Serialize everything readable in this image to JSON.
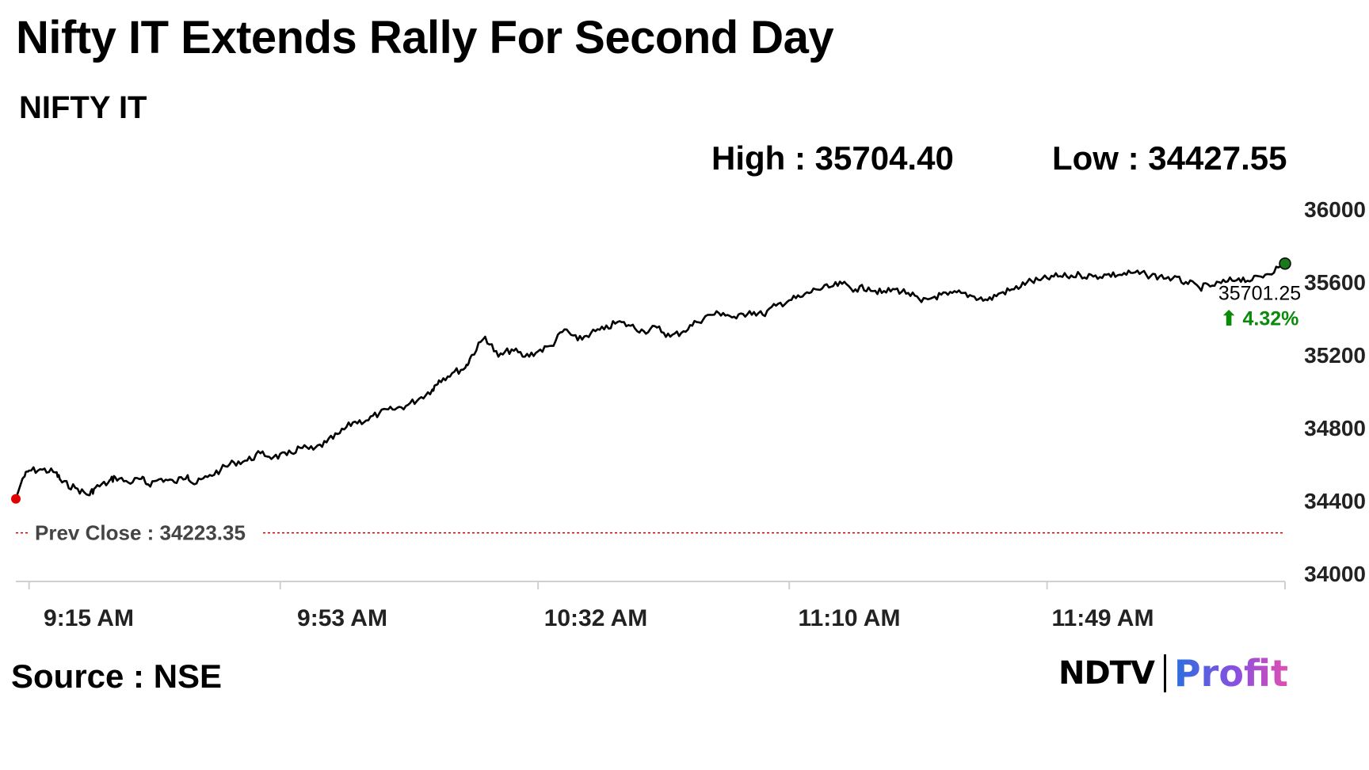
{
  "header": {
    "title": "Nifty IT Extends Rally For Second Day",
    "subtitle": "NIFTY IT",
    "high_text": "High : 35704.40",
    "low_text": "Low : 34427.55"
  },
  "footer": {
    "source": "Source : NSE",
    "logo_ndtv": "NDTV",
    "logo_profit": "Profit"
  },
  "colors": {
    "line": "#000000",
    "start_marker": "#e00000",
    "end_marker": "#1a7a1a",
    "prev_close_line": "#c00000",
    "change_up": "#0a8a0a"
  },
  "chart_data": {
    "type": "line",
    "title": "NIFTY IT",
    "xlabel": "",
    "ylabel": "",
    "ylim": [
      34000,
      36000
    ],
    "y_ticks": [
      34000,
      34400,
      34800,
      35200,
      35600,
      36000
    ],
    "x_ticks": [
      "9:15 AM",
      "9:53 AM",
      "10:32 AM",
      "11:10 AM",
      "11:49 AM"
    ],
    "x_tick_minutes": [
      555,
      593,
      632,
      670,
      709
    ],
    "x_range_minutes": [
      553,
      745
    ],
    "grid": false,
    "prev_close": 34223.35,
    "prev_close_label": "Prev Close : 34223.35",
    "high": 35704.4,
    "low": 34427.55,
    "last_value_label": "35701.25",
    "change_label": "⬆ 4.32%",
    "series": [
      {
        "name": "",
        "x_minutes": [
          553,
          554,
          555,
          557,
          559,
          560,
          562,
          564,
          565,
          567,
          568,
          570,
          572,
          573,
          575,
          577,
          579,
          580,
          582,
          584,
          586,
          588,
          590,
          592,
          594,
          596,
          598,
          600,
          602,
          604,
          606,
          608,
          610,
          612,
          614,
          616,
          617,
          619,
          621,
          622,
          624,
          626,
          628,
          630,
          632,
          634,
          636,
          638,
          640,
          642,
          644,
          646,
          648,
          650,
          652,
          654,
          656,
          658,
          660,
          662,
          664,
          666,
          668,
          670,
          672,
          674,
          676,
          678,
          680,
          682,
          684,
          686,
          688,
          690,
          692,
          694,
          696,
          698,
          700,
          702,
          704,
          706,
          708,
          710,
          712,
          714,
          716,
          718,
          720,
          722,
          724,
          726,
          728,
          730,
          732,
          734,
          736,
          738,
          740,
          742,
          744,
          745
        ],
        "values": [
          34410,
          34520,
          34565,
          34570,
          34555,
          34500,
          34470,
          34430,
          34470,
          34500,
          34530,
          34500,
          34520,
          34490,
          34520,
          34500,
          34540,
          34490,
          34530,
          34570,
          34610,
          34620,
          34660,
          34640,
          34650,
          34690,
          34680,
          34720,
          34770,
          34830,
          34840,
          34880,
          34900,
          34920,
          34960,
          35010,
          35060,
          35100,
          35130,
          35200,
          35300,
          35190,
          35230,
          35190,
          35220,
          35250,
          35340,
          35280,
          35320,
          35340,
          35380,
          35360,
          35330,
          35350,
          35300,
          35330,
          35380,
          35420,
          35430,
          35400,
          35440,
          35420,
          35470,
          35500,
          35520,
          35560,
          35570,
          35590,
          35560,
          35570,
          35540,
          35560,
          35540,
          35490,
          35520,
          35530,
          35540,
          35520,
          35500,
          35540,
          35560,
          35600,
          35610,
          35630,
          35630,
          35640,
          35630,
          35640,
          35640,
          35650,
          35640,
          35630,
          35620,
          35600,
          35570,
          35580,
          35600,
          35620,
          35610,
          35640,
          35680,
          35701.25
        ]
      }
    ]
  }
}
